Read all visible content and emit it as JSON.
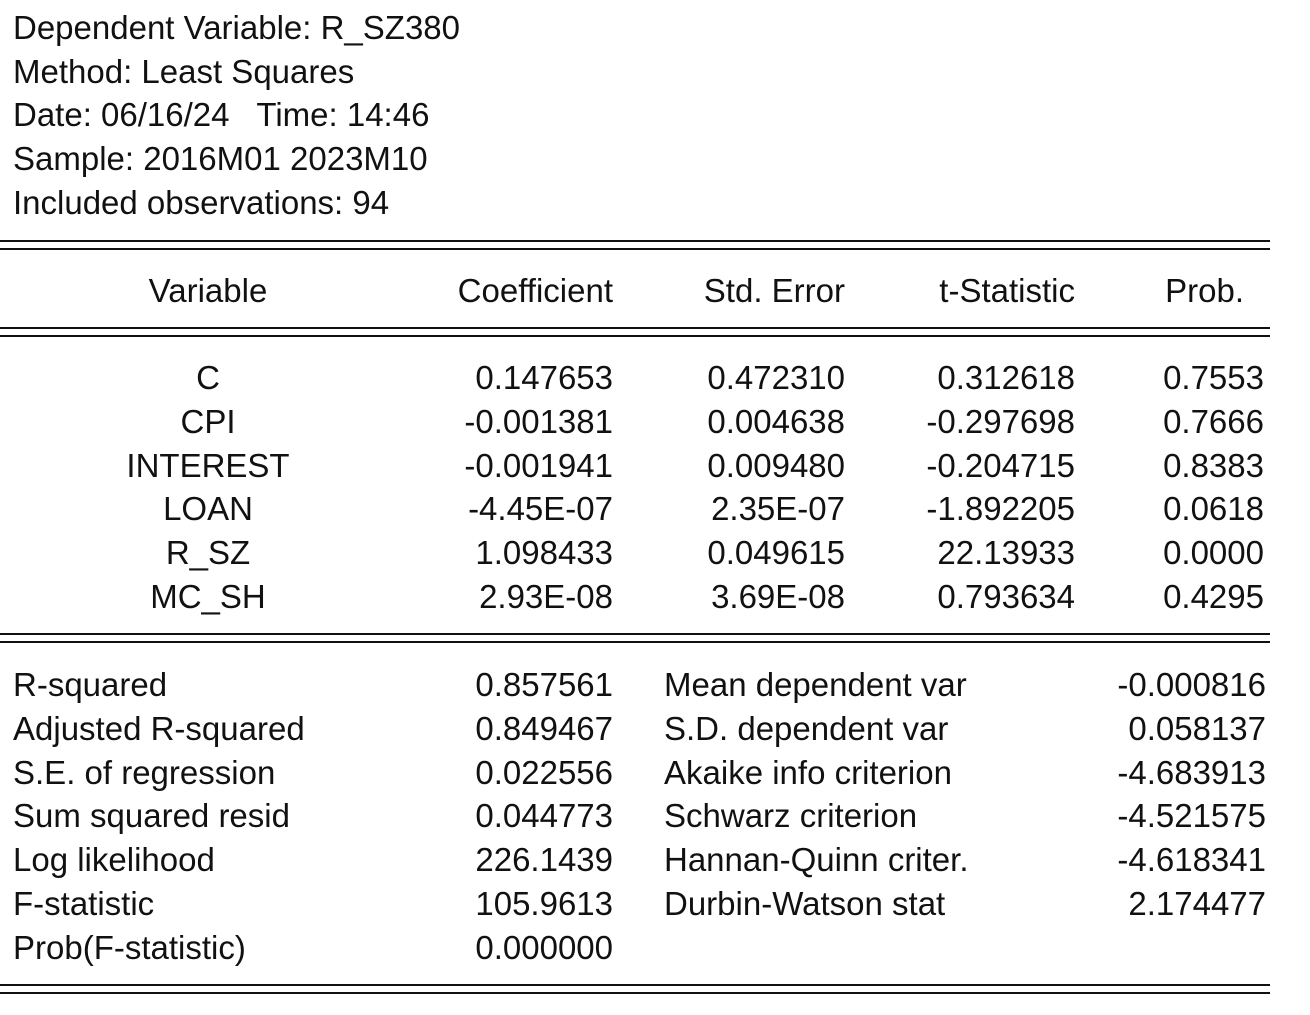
{
  "header": {
    "dependent": "Dependent Variable: R_SZ380",
    "method": "Method: Least Squares",
    "date": "Date: 06/16/24   Time: 14:46",
    "sample": "Sample: 2016M01 2023M10",
    "observations": "Included observations: 94"
  },
  "columns": [
    "Variable",
    "Coefficient",
    "Std. Error",
    "t-Statistic",
    "Prob."
  ],
  "rows": [
    {
      "variable": "C",
      "coefficient": "0.147653",
      "std_error": "0.472310",
      "t_stat": "0.312618",
      "prob": "0.7553"
    },
    {
      "variable": "CPI",
      "coefficient": "-0.001381",
      "std_error": "0.004638",
      "t_stat": "-0.297698",
      "prob": "0.7666"
    },
    {
      "variable": "INTEREST",
      "coefficient": "-0.001941",
      "std_error": "0.009480",
      "t_stat": "-0.204715",
      "prob": "0.8383"
    },
    {
      "variable": "LOAN",
      "coefficient": "-4.45E-07",
      "std_error": "2.35E-07",
      "t_stat": "-1.892205",
      "prob": "0.0618"
    },
    {
      "variable": "R_SZ",
      "coefficient": "1.098433",
      "std_error": "0.049615",
      "t_stat": "22.13933",
      "prob": "0.0000"
    },
    {
      "variable": "MC_SH",
      "coefficient": "2.93E-08",
      "std_error": "3.69E-08",
      "t_stat": "0.793634",
      "prob": "0.4295"
    }
  ],
  "stats_left": [
    {
      "label": "R-squared",
      "value": "0.857561"
    },
    {
      "label": "Adjusted R-squared",
      "value": "0.849467"
    },
    {
      "label": "S.E. of regression",
      "value": "0.022556"
    },
    {
      "label": "Sum squared resid",
      "value": "0.044773"
    },
    {
      "label": "Log likelihood",
      "value": "226.1439"
    },
    {
      "label": "F-statistic",
      "value": "105.9613"
    },
    {
      "label": "Prob(F-statistic)",
      "value": "0.000000"
    }
  ],
  "stats_right": [
    {
      "label": "Mean dependent var",
      "value": "-0.000816"
    },
    {
      "label": "S.D. dependent var",
      "value": "0.058137"
    },
    {
      "label": "Akaike info criterion",
      "value": "-4.683913"
    },
    {
      "label": "Schwarz criterion",
      "value": "-4.521575"
    },
    {
      "label": "Hannan-Quinn criter.",
      "value": "-4.618341"
    },
    {
      "label": "Durbin-Watson stat",
      "value": "2.174477"
    }
  ]
}
